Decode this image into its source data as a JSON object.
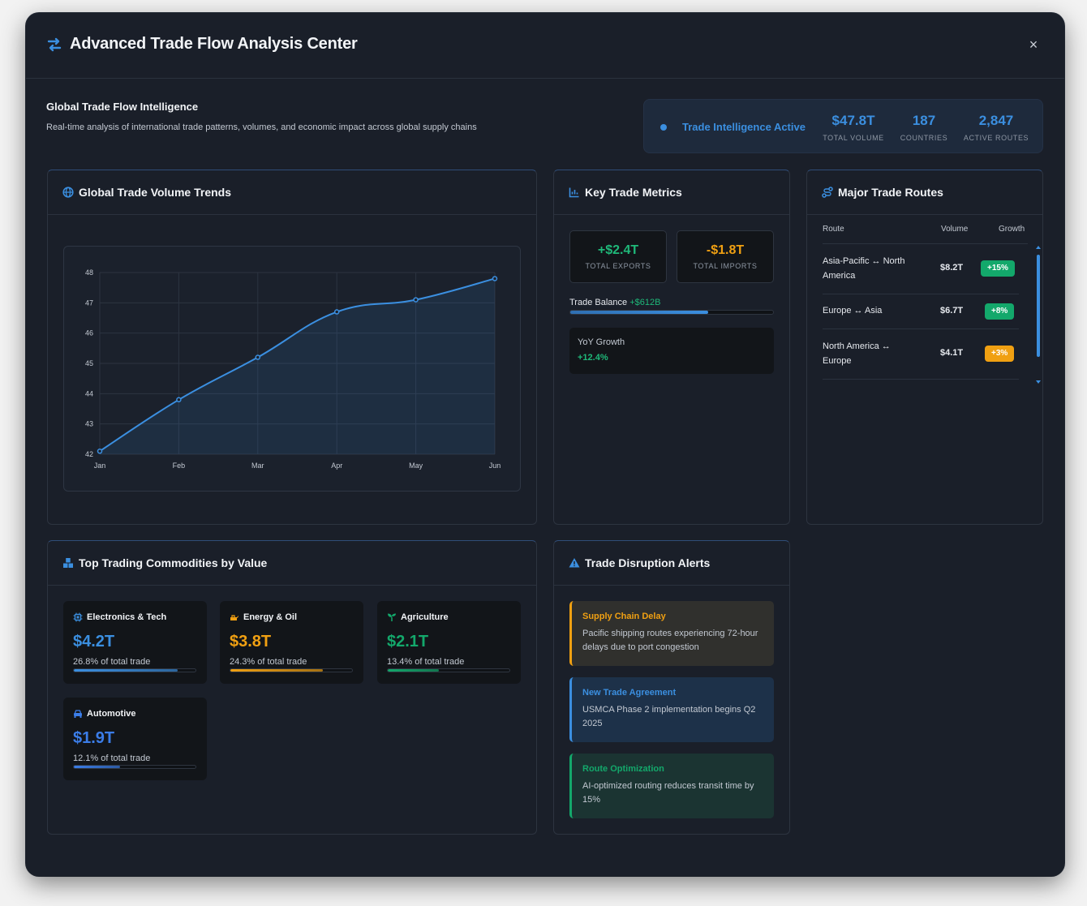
{
  "header": {
    "title": "Advanced Trade Flow Analysis Center",
    "close_label": "×"
  },
  "intro": {
    "title": "Global Trade Flow Intelligence",
    "subtitle": "Real-time analysis of international trade patterns, volumes, and economic impact across global supply chains"
  },
  "status": {
    "label": "Trade Intelligence Active",
    "stats": [
      {
        "value": "$47.8T",
        "label": "TOTAL VOLUME"
      },
      {
        "value": "187",
        "label": "COUNTRIES"
      },
      {
        "value": "2,847",
        "label": "ACTIVE ROUTES"
      }
    ]
  },
  "volume_panel": {
    "title": "Global Trade Volume Trends"
  },
  "chart_data": {
    "type": "area",
    "title": "Global Trade Volume Trends",
    "categories": [
      "Jan",
      "Feb",
      "Mar",
      "Apr",
      "May",
      "Jun"
    ],
    "values": [
      42.1,
      43.8,
      45.2,
      46.7,
      47.1,
      47.8
    ],
    "ylim": [
      42,
      48
    ],
    "yticks": [
      42,
      43,
      44,
      45,
      46,
      47,
      48
    ],
    "grid": true,
    "xlabel": "",
    "ylabel": ""
  },
  "metrics_panel": {
    "title": "Key Trade Metrics",
    "exports": {
      "value": "+$2.4T",
      "label": "TOTAL EXPORTS"
    },
    "imports": {
      "value": "-$1.8T",
      "label": "TOTAL IMPORTS"
    },
    "balance_label": "Trade Balance",
    "balance_value": "+$612B",
    "balance_fraction": 0.68,
    "yoy_label": "YoY Growth",
    "yoy_value": "+12.4%"
  },
  "routes_panel": {
    "title": "Major Trade Routes",
    "columns": [
      "Route",
      "Volume",
      "Growth"
    ],
    "rows": [
      {
        "route": "Asia-Pacific ↔ North America",
        "volume": "$8.2T",
        "growth": "+15%",
        "color": "#13a86b"
      },
      {
        "route": "Europe ↔ Asia",
        "volume": "$6.7T",
        "growth": "+8%",
        "color": "#13a86b"
      },
      {
        "route": "North America ↔ Europe",
        "volume": "$4.1T",
        "growth": "+3%",
        "color": "#f0a012"
      }
    ]
  },
  "commodities_panel": {
    "title": "Top Trading Commodities by Value",
    "items": [
      {
        "name": "Electronics & Tech",
        "value": "$4.2T",
        "share": "26.8% of total trade",
        "fraction": 0.85,
        "color": "#3b8fe0",
        "icon": "chip-icon"
      },
      {
        "name": "Energy & Oil",
        "value": "$3.8T",
        "share": "24.3% of total trade",
        "fraction": 0.76,
        "color": "#f0a012",
        "icon": "oil-icon"
      },
      {
        "name": "Agriculture",
        "value": "$2.1T",
        "share": "13.4% of total trade",
        "fraction": 0.42,
        "color": "#13a86b",
        "icon": "seedling-icon"
      },
      {
        "name": "Automotive",
        "value": "$1.9T",
        "share": "12.1% of total trade",
        "fraction": 0.38,
        "color": "#3b7de8",
        "icon": "car-icon"
      }
    ]
  },
  "alerts_panel": {
    "title": "Trade Disruption Alerts",
    "alerts": [
      {
        "title": "Supply Chain Delay",
        "text": "Pacific shipping routes experiencing 72-hour delays due to port congestion",
        "color": "#f0a012",
        "bg": "#30302d"
      },
      {
        "title": "New Trade Agreement",
        "text": "USMCA Phase 2 implementation begins Q2 2025",
        "color": "#3b8fe0",
        "bg": "#1d3149"
      },
      {
        "title": "Route Optimization",
        "text": "AI-optimized routing reduces transit time by 15%",
        "color": "#13a86b",
        "bg": "#1b3432"
      }
    ]
  }
}
